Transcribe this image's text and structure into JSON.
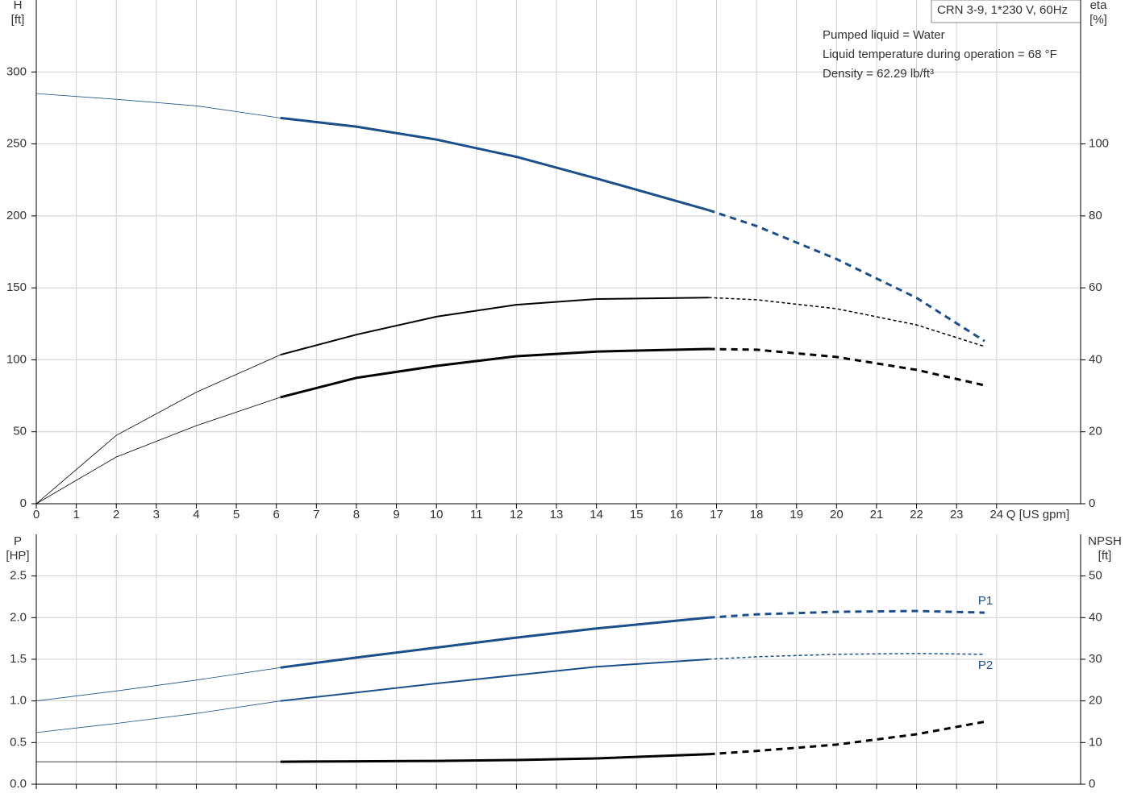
{
  "chart_data": [
    {
      "type": "line",
      "title": "CRN 3-9, 1*230 V, 60Hz",
      "annotations": [
        "Pumped liquid = Water",
        "Liquid temperature during operation = 68 °F",
        "Density = 62.29 lb/ft³"
      ],
      "xlabel": "Q [US gpm]",
      "ylabel": "H",
      "yunit": "[ft]",
      "y2label": "eta",
      "y2unit": "[%]",
      "x": [
        0,
        2,
        4,
        6.1,
        8,
        10,
        12,
        14,
        16.8,
        18,
        20,
        22,
        23.7
      ],
      "xlim": [
        0,
        26.1
      ],
      "xticks": [
        0,
        1,
        2,
        3,
        4,
        5,
        6,
        7,
        8,
        9,
        10,
        11,
        12,
        13,
        14,
        15,
        16,
        17,
        18,
        19,
        20,
        21,
        22,
        23,
        24
      ],
      "ylim": [
        0,
        350
      ],
      "yticks": [
        0,
        50,
        100,
        150,
        200,
        250,
        300
      ],
      "y2lim": [
        0,
        140
      ],
      "y2ticks": [
        0,
        20,
        40,
        60,
        80,
        100
      ],
      "grid": true,
      "duty_range": [
        6.1,
        16.8
      ],
      "series": [
        {
          "color": "#1a4f8b",
          "weight": "heavy",
          "values": [
            285,
            281,
            276.5,
            268,
            262,
            253,
            241,
            226,
            204,
            193,
            170,
            143,
            113
          ]
        },
        {
          "color": "#000000",
          "weight": "light",
          "axis": "y2",
          "values": [
            0,
            19,
            31,
            41.4,
            47,
            52,
            55.3,
            56.9,
            57.3,
            56.7,
            54.2,
            49.7,
            43.7
          ]
        },
        {
          "color": "#000000",
          "weight": "heavy",
          "axis": "y2",
          "values": [
            0,
            13,
            21.7,
            29.6,
            35,
            38.3,
            41,
            42.3,
            43,
            42.8,
            40.8,
            37.2,
            32.9
          ]
        }
      ]
    },
    {
      "type": "line",
      "ylabel": "P",
      "yunit": "[HP]",
      "y2label": "NPSH",
      "y2unit": "[ft]",
      "x": [
        0,
        2,
        4,
        6.1,
        8,
        10,
        12,
        14,
        16.8,
        18,
        20,
        22,
        23.7
      ],
      "xlim": [
        0,
        26.1
      ],
      "ylim": [
        0,
        3.0
      ],
      "yticks": [
        {
          "value": 0,
          "label": "0.0"
        },
        0.5,
        {
          "value": 1,
          "label": "1.0"
        },
        1.5,
        {
          "value": 2,
          "label": "2.0"
        },
        2.5
      ],
      "y2lim": [
        0,
        60
      ],
      "y2ticks": [
        0,
        10,
        20,
        30,
        40,
        50
      ],
      "grid": true,
      "duty_range": [
        6.1,
        16.8
      ],
      "series": [
        {
          "name": "P1",
          "color": "#1a4f8b",
          "weight": "heavy",
          "values": [
            1.0,
            1.12,
            1.25,
            1.4,
            1.52,
            1.64,
            1.76,
            1.87,
            2.0,
            2.04,
            2.07,
            2.08,
            2.06
          ]
        },
        {
          "name": "P2",
          "color": "#1a4f8b",
          "weight": "light",
          "values": [
            0.62,
            0.73,
            0.85,
            1.0,
            1.1,
            1.21,
            1.31,
            1.41,
            1.5,
            1.53,
            1.56,
            1.57,
            1.56
          ]
        },
        {
          "color": "#000000",
          "weight": "heavy",
          "axis": "y2",
          "values": [
            5.4,
            5.4,
            5.4,
            5.4,
            5.5,
            5.6,
            5.8,
            6.2,
            7.2,
            8,
            9.5,
            12,
            15
          ]
        }
      ]
    }
  ]
}
